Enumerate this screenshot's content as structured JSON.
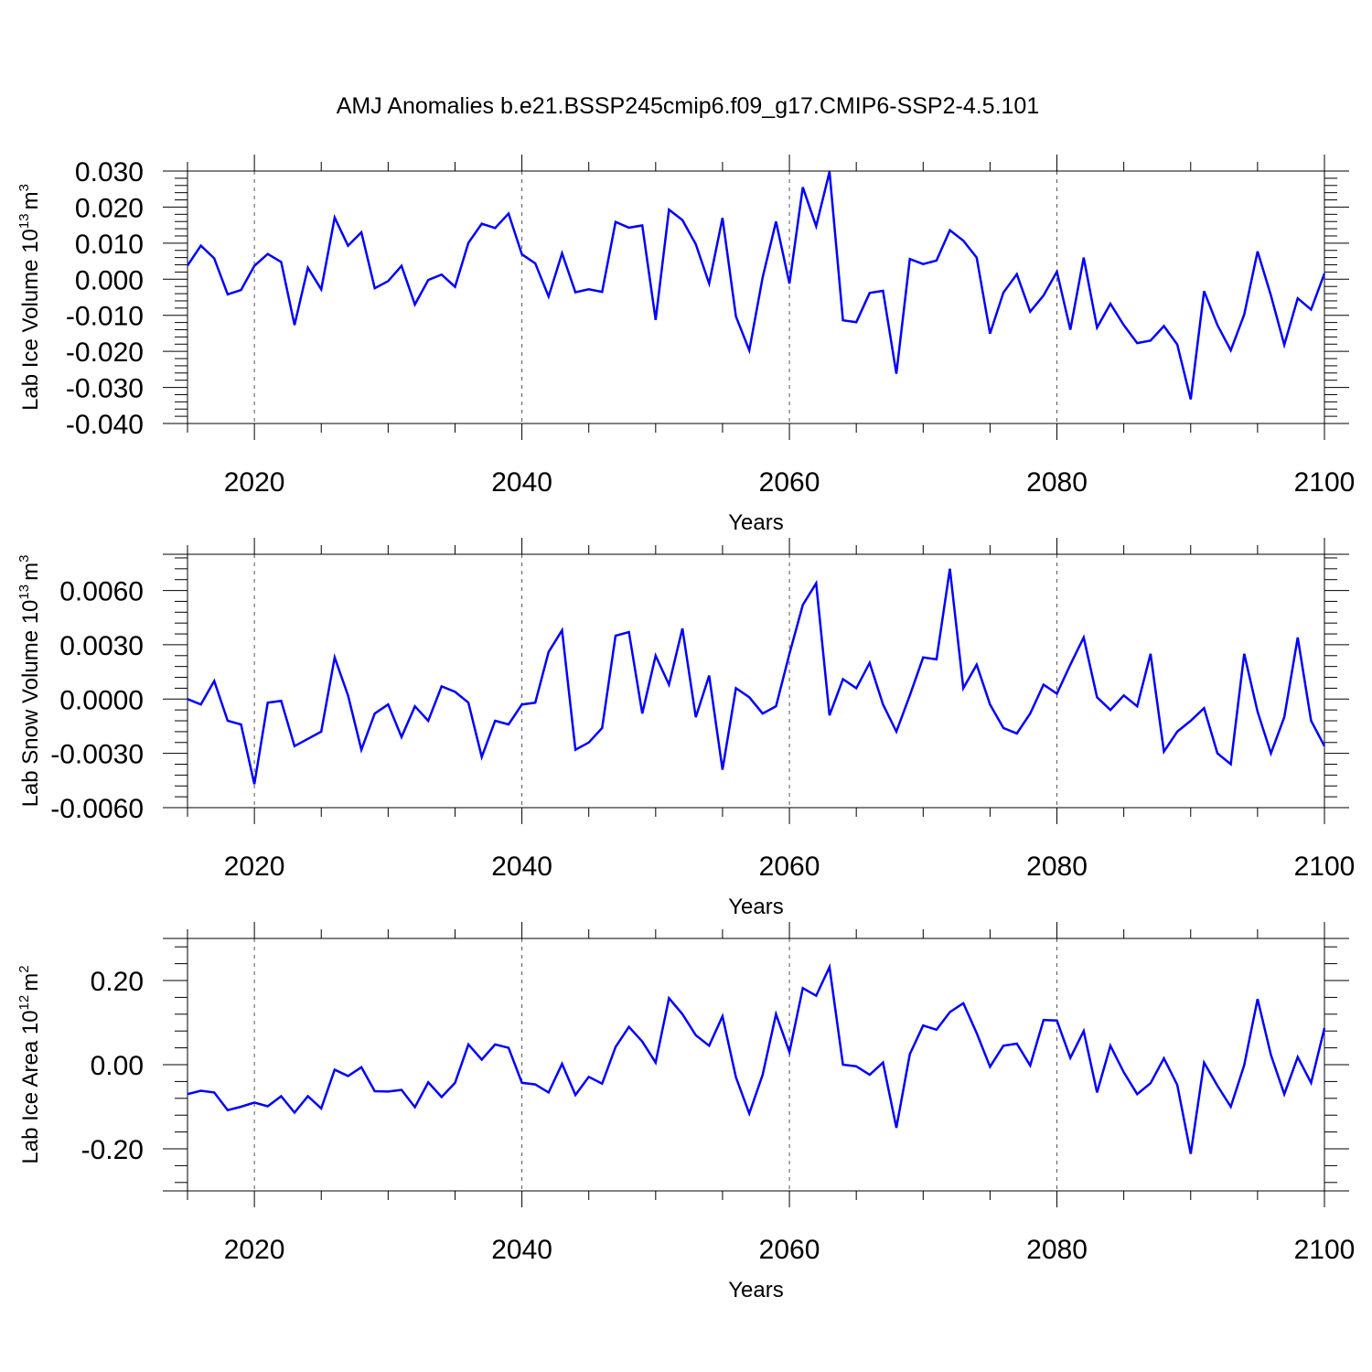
{
  "title": "AMJ Anomalies b.e21.BSSP245cmip6.f09_g17.CMIP6-SSP2-4.5.101",
  "colors": {
    "line": "#0000ff",
    "axis": "#000000",
    "grid": "#555555"
  },
  "chart_data": [
    {
      "type": "line",
      "ylabel": "Lab Ice Volume 10",
      "ylabel_exp": "13",
      "ylabel_unit": "m",
      "ylabel_unit_exp": "3",
      "xlabel": "Years",
      "xlim": [
        2015,
        2100
      ],
      "ylim": [
        -0.04,
        0.03
      ],
      "yticks": [
        -0.04,
        -0.03,
        -0.02,
        -0.01,
        0.0,
        0.01,
        0.02,
        0.03
      ],
      "ytick_labels": [
        "-0.040",
        "-0.030",
        "-0.020",
        "-0.010",
        "0.000",
        "0.010",
        "0.020",
        "0.030"
      ],
      "xticks": [
        2020,
        2040,
        2060,
        2080,
        2100
      ],
      "xtick_labels": [
        "2020",
        "2040",
        "2060",
        "2080",
        "2100"
      ],
      "grid": "vertical dashed at major x ticks",
      "series": [
        {
          "x_start": 2015,
          "values": [
            0.0038,
            0.0093,
            0.0058,
            -0.0042,
            -0.003,
            0.0037,
            0.007,
            0.0048,
            -0.0127,
            0.0032,
            -0.0028,
            0.0171,
            0.0093,
            0.013,
            -0.0025,
            -0.0005,
            0.0037,
            -0.007,
            -0.0002,
            0.0013,
            -0.0021,
            0.0101,
            0.0154,
            0.0142,
            0.0182,
            0.0069,
            0.0044,
            -0.0048,
            0.0072,
            -0.0036,
            -0.0028,
            -0.0035,
            0.0159,
            0.0143,
            0.0149,
            -0.0113,
            0.0193,
            0.0164,
            0.0097,
            -0.0012,
            0.017,
            -0.0103,
            -0.0197,
            0.0005,
            0.016,
            -0.0012,
            0.0255,
            0.0147,
            0.0298,
            -0.0114,
            -0.0119,
            -0.0038,
            -0.0032,
            -0.0262,
            0.0056,
            0.0042,
            0.0052,
            0.0136,
            0.0107,
            0.006,
            -0.0151,
            -0.0037,
            0.0014,
            -0.009,
            -0.0045,
            0.0021,
            -0.014,
            0.006,
            -0.0134,
            -0.0068,
            -0.0127,
            -0.0177,
            -0.017,
            -0.013,
            -0.0181,
            -0.0333,
            -0.0033,
            -0.0127,
            -0.0197,
            -0.0098,
            0.0077,
            -0.0045,
            -0.0182,
            -0.0053,
            -0.0084,
            0.0016
          ]
        }
      ]
    },
    {
      "type": "line",
      "ylabel": "Lab Snow Volume 10",
      "ylabel_exp": "13",
      "ylabel_unit": "m",
      "ylabel_unit_exp": "3",
      "xlabel": "Years",
      "xlim": [
        2015,
        2100
      ],
      "ylim": [
        -0.006,
        0.008
      ],
      "yticks": [
        -0.006,
        -0.003,
        0.0,
        0.003,
        0.006
      ],
      "ytick_labels": [
        "-0.0060",
        "-0.0030",
        "0.0000",
        "0.0030",
        "0.0060"
      ],
      "xticks": [
        2020,
        2040,
        2060,
        2080,
        2100
      ],
      "xtick_labels": [
        "2020",
        "2040",
        "2060",
        "2080",
        "2100"
      ],
      "grid": "vertical dashed at major x ticks",
      "series": [
        {
          "x_start": 2015,
          "values": [
            0.0,
            -0.0003,
            0.001,
            -0.0012,
            -0.0014,
            -0.0047,
            -0.0002,
            -0.0001,
            -0.0026,
            -0.0022,
            -0.0018,
            0.0023,
            0.0002,
            -0.0028,
            -0.0008,
            -0.0003,
            -0.0021,
            -0.0004,
            -0.0012,
            0.0007,
            0.0004,
            -0.0002,
            -0.0032,
            -0.0012,
            -0.0014,
            -0.0003,
            -0.0002,
            0.0026,
            0.0038,
            -0.0028,
            -0.0024,
            -0.0016,
            0.0035,
            0.0037,
            -0.0008,
            0.0024,
            0.0008,
            0.0039,
            -0.001,
            0.0013,
            -0.0039,
            0.0006,
            0.0001,
            -0.0008,
            -0.0004,
            0.0025,
            0.0052,
            0.0064,
            -0.0009,
            0.0011,
            0.0006,
            0.002,
            -0.0003,
            -0.0018,
            0.0002,
            0.0023,
            0.0022,
            0.0072,
            0.0006,
            0.0019,
            -0.0003,
            -0.0016,
            -0.0019,
            -0.0008,
            0.0008,
            0.0003,
            0.0019,
            0.0034,
            0.0001,
            -0.0006,
            0.0002,
            -0.0004,
            0.0025,
            -0.0029,
            -0.0018,
            -0.0012,
            -0.0005,
            -0.003,
            -0.0036,
            0.0025,
            -0.0007,
            -0.003,
            -0.001,
            0.0034,
            -0.0012,
            -0.0026
          ]
        }
      ]
    },
    {
      "type": "line",
      "ylabel": "Lab Ice Area 10",
      "ylabel_exp": "12",
      "ylabel_unit": "m",
      "ylabel_unit_exp": "2",
      "xlabel": "Years",
      "xlim": [
        2015,
        2100
      ],
      "ylim": [
        -0.3,
        0.3
      ],
      "yticks": [
        -0.2,
        0.0,
        0.2
      ],
      "ytick_labels": [
        "-0.20",
        "0.00",
        "0.20"
      ],
      "xticks": [
        2020,
        2040,
        2060,
        2080,
        2100
      ],
      "xtick_labels": [
        "2020",
        "2040",
        "2060",
        "2080",
        "2100"
      ],
      "grid": "vertical dashed at major x ticks",
      "series": [
        {
          "x_start": 2015,
          "values": [
            -0.07,
            -0.062,
            -0.066,
            -0.108,
            -0.1,
            -0.09,
            -0.099,
            -0.075,
            -0.114,
            -0.075,
            -0.104,
            -0.012,
            -0.027,
            -0.006,
            -0.063,
            -0.064,
            -0.06,
            -0.101,
            -0.042,
            -0.077,
            -0.043,
            0.048,
            0.012,
            0.048,
            0.04,
            -0.043,
            -0.047,
            -0.066,
            0.002,
            -0.072,
            -0.029,
            -0.045,
            0.042,
            0.09,
            0.055,
            0.005,
            0.158,
            0.12,
            0.07,
            0.045,
            0.115,
            -0.03,
            -0.116,
            -0.024,
            0.12,
            0.03,
            0.182,
            0.164,
            0.232,
            0.0,
            -0.004,
            -0.024,
            0.005,
            -0.15,
            0.025,
            0.093,
            0.083,
            0.125,
            0.146,
            0.075,
            -0.005,
            0.045,
            0.05,
            -0.002,
            0.106,
            0.105,
            0.016,
            0.08,
            -0.066,
            0.045,
            -0.018,
            -0.07,
            -0.044,
            0.015,
            -0.048,
            -0.212,
            0.005,
            -0.05,
            -0.1,
            -0.001,
            0.156,
            0.023,
            -0.07,
            0.018,
            -0.043,
            0.087
          ]
        }
      ]
    }
  ]
}
